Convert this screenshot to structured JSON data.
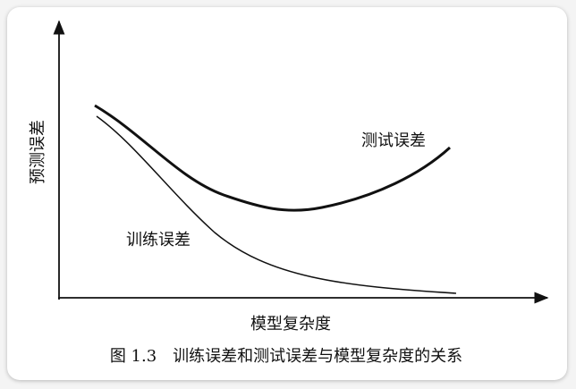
{
  "axis_labels": {
    "y": "预测误差",
    "x": "模型复杂度"
  },
  "curve_labels": {
    "test": "测试误差",
    "train": "训练误差"
  },
  "caption": "图 1.3　训练误差和测试误差与模型复杂度的关系"
}
